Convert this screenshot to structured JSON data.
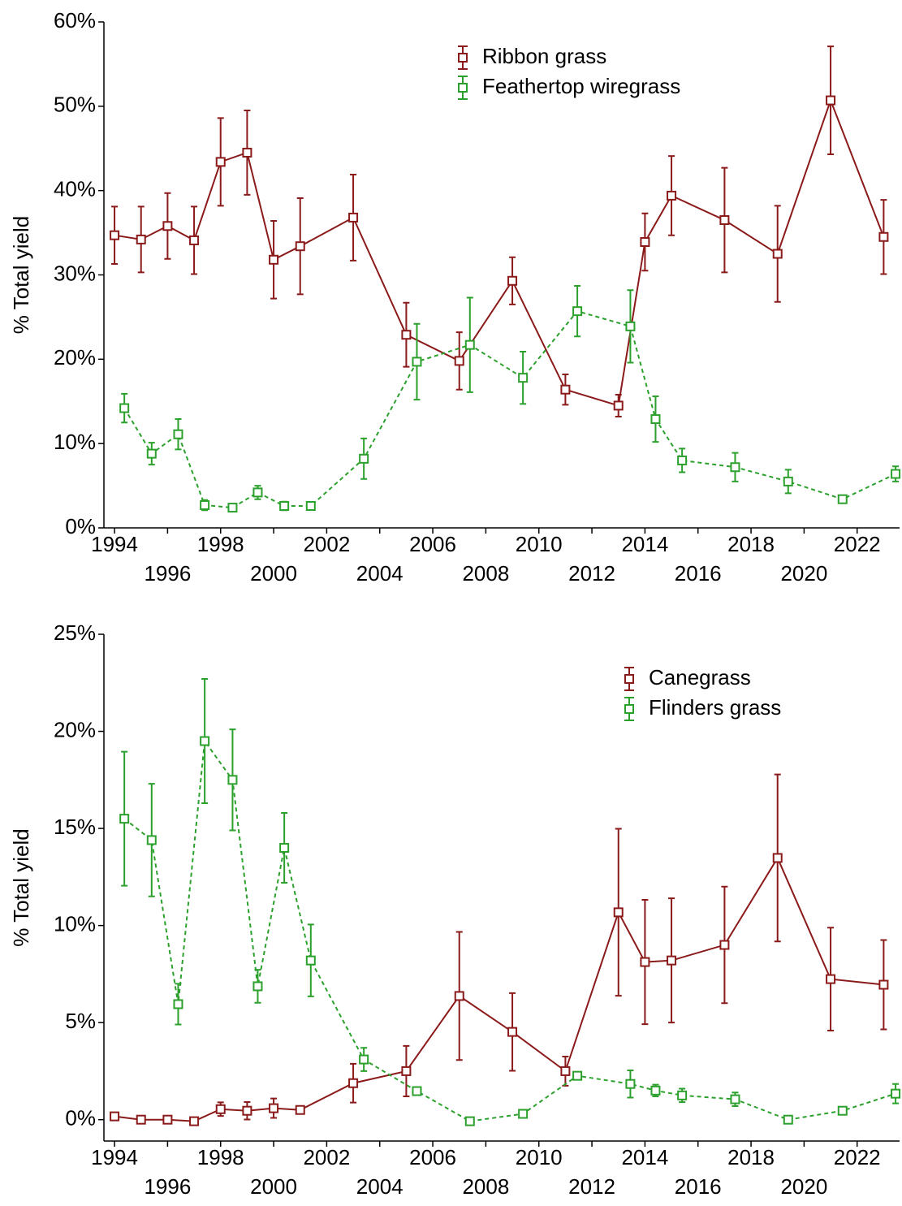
{
  "chart_data": [
    {
      "type": "line",
      "ylabel": "% Total yield",
      "xlim": [
        1993.6,
        2023.6
      ],
      "ylim": [
        0,
        60
      ],
      "xticks": [
        1994,
        1996,
        1998,
        2000,
        2002,
        2004,
        2006,
        2008,
        2010,
        2012,
        2014,
        2016,
        2018,
        2020,
        2022
      ],
      "yticks": [
        {
          "value": 0,
          "label": "0%"
        },
        {
          "value": 10,
          "label": "10%"
        },
        {
          "value": 20,
          "label": "20%"
        },
        {
          "value": 30,
          "label": "30%"
        },
        {
          "value": 40,
          "label": "40%"
        },
        {
          "value": 50,
          "label": "50%"
        },
        {
          "value": 60,
          "label": "60%"
        }
      ],
      "legend": "upper-right",
      "series": [
        {
          "name": "Ribbon grass",
          "color": "#8b1a1a",
          "linestyle": "solid",
          "x": [
            1994,
            1995,
            1996,
            1997,
            1998,
            1999,
            2000,
            2001,
            2003,
            2005,
            2007,
            2009,
            2011,
            2013,
            2014,
            2015,
            2017,
            2019,
            2021,
            2023
          ],
          "values": [
            34.7,
            34.2,
            35.8,
            34.1,
            43.4,
            44.5,
            31.8,
            33.4,
            36.8,
            22.9,
            19.8,
            29.3,
            16.4,
            14.5,
            33.9,
            39.4,
            36.5,
            32.5,
            50.7,
            34.5
          ],
          "errors": [
            3.4,
            3.9,
            3.9,
            4,
            5.2,
            5,
            4.6,
            5.7,
            5.1,
            3.8,
            3.4,
            2.8,
            1.8,
            1.3,
            3.4,
            4.7,
            6.2,
            5.7,
            6.4,
            4.4
          ]
        },
        {
          "name": "Feathertop wiregrass",
          "color": "#2ca02c",
          "linestyle": "dashed",
          "x": [
            1994.37,
            1995.4,
            1996.4,
            1997.4,
            1998.45,
            1999.4,
            2000.4,
            2001.4,
            2003.4,
            2005.4,
            2007.4,
            2009.4,
            2011.45,
            2013.45,
            2014.4,
            2015.4,
            2017.4,
            2019.4,
            2021.45,
            2023.45
          ],
          "values": [
            14.2,
            8.8,
            11.1,
            2.7,
            2.4,
            4.2,
            2.6,
            2.6,
            8.2,
            19.7,
            21.7,
            17.8,
            25.7,
            23.9,
            12.9,
            8.0,
            7.2,
            5.5,
            3.4,
            6.4
          ],
          "errors": [
            1.7,
            1.3,
            1.8,
            0.6,
            0.4,
            0.8,
            0.5,
            0.4,
            2.4,
            4.5,
            5.6,
            3.1,
            3.0,
            4.3,
            2.7,
            1.4,
            1.7,
            1.4,
            0.4,
            0.9
          ]
        }
      ]
    },
    {
      "type": "line",
      "ylabel": "% Total yield",
      "xlim": [
        1993.6,
        2023.6
      ],
      "ylim": [
        -1.1,
        25
      ],
      "xticks": [
        1994,
        1996,
        1998,
        2000,
        2002,
        2004,
        2006,
        2008,
        2010,
        2012,
        2014,
        2016,
        2018,
        2020,
        2022
      ],
      "yticks": [
        {
          "value": 0,
          "label": "0%"
        },
        {
          "value": 5,
          "label": "5%"
        },
        {
          "value": 10,
          "label": "10%"
        },
        {
          "value": 15,
          "label": "15%"
        },
        {
          "value": 20,
          "label": "20%"
        },
        {
          "value": 25,
          "label": "25%"
        }
      ],
      "legend": "upper-right",
      "series": [
        {
          "name": "Canegrass",
          "color": "#8b1a1a",
          "linestyle": "solid",
          "x": [
            1994,
            1995,
            1996,
            1997,
            1998,
            1999,
            2000,
            2001,
            2003,
            2005,
            2007,
            2009,
            2011,
            2013,
            2014,
            2015,
            2017,
            2019,
            2021,
            2023
          ],
          "values": [
            0.17,
            0.0,
            0.0,
            -0.08,
            0.54,
            0.46,
            0.59,
            0.5,
            1.88,
            2.5,
            6.37,
            4.52,
            2.5,
            10.68,
            8.12,
            8.2,
            9.0,
            13.48,
            7.24,
            6.95
          ],
          "errors": [
            0.2,
            0.1,
            0.1,
            0.1,
            0.35,
            0.45,
            0.5,
            0.2,
            1.0,
            1.3,
            3.3,
            2.0,
            0.75,
            4.3,
            3.2,
            3.2,
            3.0,
            4.3,
            2.65,
            2.3
          ]
        },
        {
          "name": "Flinders grass",
          "color": "#2ca02c",
          "linestyle": "dashed",
          "x": [
            1994.37,
            1995.4,
            1996.4,
            1997.4,
            1998.45,
            1999.4,
            2000.4,
            2001.4,
            2003.4,
            2005.4,
            2007.4,
            2009.4,
            2011.45,
            2013.45,
            2014.4,
            2015.4,
            2017.4,
            2019.4,
            2021.45,
            2023.45
          ],
          "values": [
            15.5,
            14.4,
            5.95,
            19.5,
            17.5,
            6.87,
            14.0,
            8.2,
            3.1,
            1.47,
            -0.08,
            0.3,
            2.26,
            1.84,
            1.5,
            1.25,
            1.05,
            0.0,
            0.46,
            1.34
          ],
          "errors": [
            3.45,
            2.9,
            1.05,
            3.2,
            2.6,
            0.85,
            1.8,
            1.85,
            0.6,
            0.2,
            0.05,
            0.1,
            0.15,
            0.7,
            0.3,
            0.35,
            0.35,
            0.05,
            0.1,
            0.5
          ]
        }
      ]
    }
  ]
}
